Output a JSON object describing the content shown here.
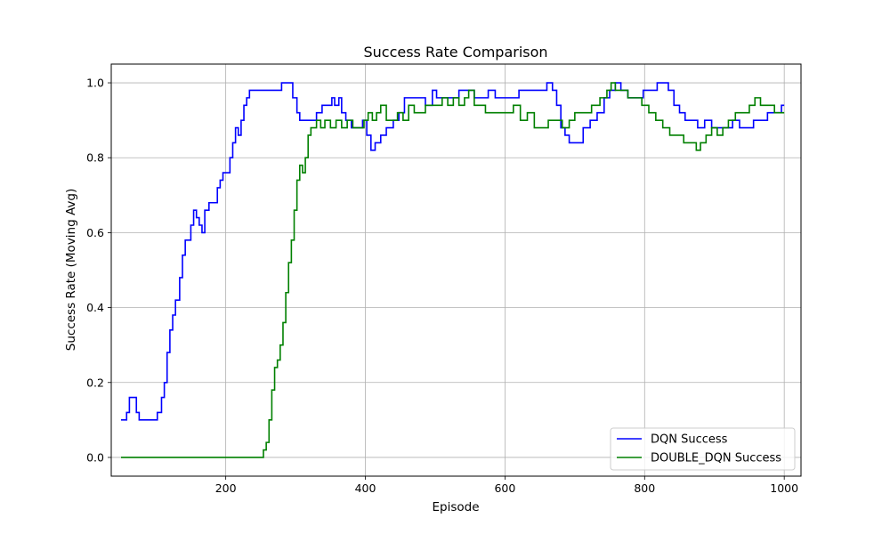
{
  "chart_data": {
    "type": "line",
    "title": "Success Rate Comparison",
    "xlabel": "Episode",
    "ylabel": "Success Rate (Moving Avg)",
    "xlim": [
      36,
      1024
    ],
    "ylim": [
      -0.05,
      1.05
    ],
    "xticks": [
      200,
      400,
      600,
      800,
      1000
    ],
    "yticks": [
      0.0,
      0.2,
      0.4,
      0.6,
      0.8,
      1.0
    ],
    "xtick_labels": [
      "200",
      "400",
      "600",
      "800",
      "1000"
    ],
    "ytick_labels": [
      "0.0",
      "0.2",
      "0.4",
      "0.6",
      "0.8",
      "1.0"
    ],
    "grid": true,
    "legend_position": "lower-right",
    "series": [
      {
        "name": "DQN Success",
        "color": "#0000ff",
        "x": [
          50,
          58,
          62,
          66,
          72,
          76,
          84,
          94,
          102,
          108,
          112,
          116,
          120,
          124,
          128,
          134,
          138,
          142,
          146,
          150,
          154,
          158,
          162,
          166,
          170,
          176,
          182,
          188,
          192,
          196,
          200,
          206,
          210,
          214,
          218,
          222,
          226,
          230,
          234,
          240,
          246,
          252,
          258,
          270,
          280,
          288,
          296,
          302,
          306,
          312,
          320,
          330,
          338,
          346,
          352,
          356,
          362,
          366,
          372,
          380,
          388,
          396,
          402,
          408,
          414,
          422,
          430,
          440,
          448,
          456,
          466,
          476,
          486,
          496,
          502,
          508,
          514,
          524,
          534,
          546,
          556,
          566,
          576,
          586,
          598,
          608,
          620,
          630,
          640,
          650,
          660,
          668,
          674,
          680,
          686,
          692,
          698,
          704,
          712,
          722,
          732,
          742,
          750,
          758,
          766,
          776,
          788,
          798,
          808,
          818,
          826,
          834,
          842,
          850,
          858,
          866,
          876,
          886,
          896,
          906,
          916,
          926,
          936,
          946,
          956,
          966,
          976,
          986,
          996,
          1000
        ],
        "y": [
          0.1,
          0.12,
          0.16,
          0.16,
          0.12,
          0.1,
          0.1,
          0.1,
          0.12,
          0.16,
          0.2,
          0.28,
          0.34,
          0.38,
          0.42,
          0.48,
          0.54,
          0.58,
          0.58,
          0.62,
          0.66,
          0.64,
          0.62,
          0.6,
          0.66,
          0.68,
          0.68,
          0.72,
          0.74,
          0.76,
          0.76,
          0.8,
          0.84,
          0.88,
          0.86,
          0.9,
          0.94,
          0.96,
          0.98,
          0.98,
          0.98,
          0.98,
          0.98,
          0.98,
          1.0,
          1.0,
          0.96,
          0.92,
          0.9,
          0.9,
          0.9,
          0.92,
          0.94,
          0.94,
          0.96,
          0.94,
          0.96,
          0.92,
          0.9,
          0.88,
          0.88,
          0.9,
          0.86,
          0.82,
          0.84,
          0.86,
          0.88,
          0.9,
          0.92,
          0.96,
          0.96,
          0.96,
          0.94,
          0.98,
          0.96,
          0.96,
          0.96,
          0.96,
          0.98,
          0.98,
          0.96,
          0.96,
          0.98,
          0.96,
          0.96,
          0.96,
          0.98,
          0.98,
          0.98,
          0.98,
          1.0,
          0.98,
          0.94,
          0.88,
          0.86,
          0.84,
          0.84,
          0.84,
          0.88,
          0.9,
          0.92,
          0.96,
          0.98,
          1.0,
          0.98,
          0.96,
          0.96,
          0.98,
          0.98,
          1.0,
          1.0,
          0.98,
          0.94,
          0.92,
          0.9,
          0.9,
          0.88,
          0.9,
          0.88,
          0.88,
          0.88,
          0.9,
          0.88,
          0.88,
          0.9,
          0.9,
          0.92,
          0.92,
          0.94,
          0.94
        ],
        "marker": "none"
      },
      {
        "name": "DOUBLE_DQN Success",
        "color": "#008000",
        "x": [
          50,
          100,
          150,
          200,
          250,
          254,
          258,
          262,
          266,
          270,
          274,
          278,
          282,
          286,
          290,
          294,
          298,
          302,
          306,
          310,
          314,
          318,
          322,
          326,
          330,
          336,
          342,
          350,
          358,
          366,
          374,
          382,
          390,
          398,
          404,
          410,
          416,
          422,
          430,
          438,
          446,
          454,
          462,
          470,
          478,
          486,
          494,
          502,
          510,
          518,
          526,
          534,
          542,
          548,
          556,
          564,
          572,
          582,
          592,
          602,
          612,
          622,
          632,
          642,
          652,
          662,
          672,
          682,
          692,
          700,
          712,
          724,
          736,
          746,
          752,
          758,
          766,
          776,
          786,
          796,
          806,
          816,
          826,
          836,
          846,
          856,
          866,
          874,
          880,
          888,
          896,
          904,
          912,
          920,
          930,
          940,
          950,
          958,
          966,
          976,
          986,
          996,
          1000
        ],
        "y": [
          0.0,
          0.0,
          0.0,
          0.0,
          0.0,
          0.02,
          0.04,
          0.1,
          0.18,
          0.24,
          0.26,
          0.3,
          0.36,
          0.44,
          0.52,
          0.58,
          0.66,
          0.74,
          0.78,
          0.76,
          0.8,
          0.86,
          0.88,
          0.88,
          0.9,
          0.88,
          0.9,
          0.88,
          0.9,
          0.88,
          0.9,
          0.88,
          0.88,
          0.9,
          0.92,
          0.9,
          0.92,
          0.94,
          0.9,
          0.9,
          0.92,
          0.9,
          0.94,
          0.92,
          0.92,
          0.94,
          0.94,
          0.94,
          0.96,
          0.94,
          0.96,
          0.94,
          0.96,
          0.98,
          0.94,
          0.94,
          0.92,
          0.92,
          0.92,
          0.92,
          0.94,
          0.9,
          0.92,
          0.88,
          0.88,
          0.9,
          0.9,
          0.88,
          0.9,
          0.92,
          0.92,
          0.94,
          0.96,
          0.98,
          1.0,
          0.98,
          0.98,
          0.96,
          0.96,
          0.94,
          0.92,
          0.9,
          0.88,
          0.86,
          0.86,
          0.84,
          0.84,
          0.82,
          0.84,
          0.86,
          0.88,
          0.86,
          0.88,
          0.9,
          0.92,
          0.92,
          0.94,
          0.96,
          0.94,
          0.94,
          0.92,
          0.92,
          0.92
        ]
      }
    ]
  }
}
